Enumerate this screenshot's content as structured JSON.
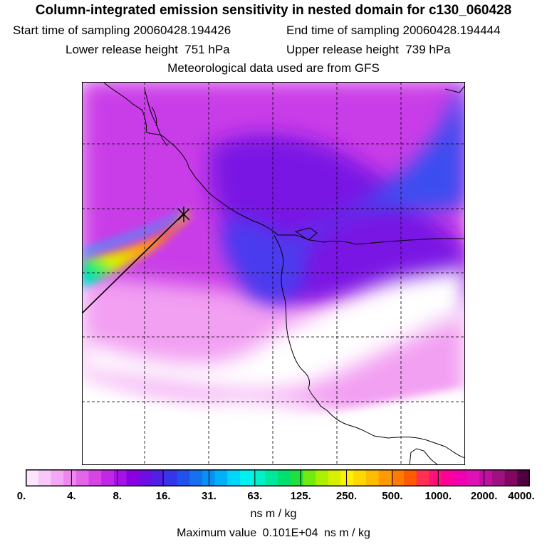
{
  "header": {
    "title": "Column-integrated emission sensitivity in nested domain for c130_060428",
    "start_label": "Start time of sampling",
    "start_value": "20060428.194426",
    "end_label": "End time of sampling",
    "end_value": "20060428.194444",
    "lower_label": "Lower release height",
    "lower_value": "751 hPa",
    "upper_label": "Upper release height",
    "upper_value": "739 hPa",
    "met_line": "Meteorological data used are from GFS"
  },
  "colorbar": {
    "ticks": [
      "0.",
      "4.",
      "8.",
      "16.",
      "31.",
      "63.",
      "125.",
      "250.",
      "500.",
      "1000.",
      "2000.",
      "4000."
    ],
    "colors": [
      "#fde6fd",
      "#f9c8f8",
      "#f4a8f4",
      "#ee88ee",
      "#e366ea",
      "#d644e6",
      "#c327e6",
      "#a512e6",
      "#8a00e2",
      "#6d0fe4",
      "#5020e6",
      "#3535ea",
      "#2050ee",
      "#1570f2",
      "#0a90f5",
      "#00b0f8",
      "#00d6fb",
      "#00f2f0",
      "#00f0c8",
      "#00e89c",
      "#00e070",
      "#20e040",
      "#70ea10",
      "#aaf000",
      "#d8f000",
      "#fff000",
      "#ffd800",
      "#ffbb00",
      "#ff9a00",
      "#ff7a00",
      "#ff5a00",
      "#ff3050",
      "#ff107a",
      "#ff0098",
      "#f000b0",
      "#e010b8",
      "#c010a0",
      "#a01080",
      "#800860",
      "#500040"
    ],
    "units": "ns m / kg"
  },
  "footer": {
    "max_label": "Maximum value",
    "max_value": "0.101E+04",
    "max_units": "ns m / kg"
  },
  "chart_data": {
    "type": "heatmap",
    "title": "Column-integrated emission sensitivity in nested domain for c130_060428",
    "colorbar_levels": [
      0,
      4,
      8,
      16,
      31,
      63,
      125,
      250,
      500,
      1000,
      2000,
      4000
    ],
    "units": "ns m / kg",
    "max_value": 1010,
    "release_marker": "x",
    "description_grid": "dashed lat/lon grid, 6x6 cells"
  }
}
